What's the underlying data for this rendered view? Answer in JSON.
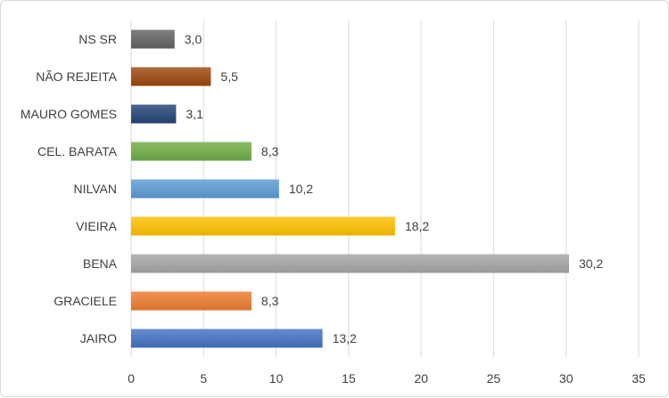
{
  "chart_data": {
    "type": "bar",
    "orientation": "horizontal",
    "categories": [
      "JAIRO",
      "GRACIELE",
      "BENA",
      "VIEIRA",
      "NILVAN",
      "CEL. BARATA",
      "MAURO GOMES",
      "NÃO REJEITA",
      "NS SR"
    ],
    "values": [
      13.2,
      8.3,
      30.2,
      18.2,
      10.2,
      8.3,
      3.1,
      5.5,
      3.0
    ],
    "value_labels": [
      "13,2",
      "8,3",
      "30,2",
      "18,2",
      "10,2",
      "8,3",
      "3,1",
      "5,5",
      "3,0"
    ],
    "bar_colors": [
      "#4472c4",
      "#ed7d31",
      "#a5a5a5",
      "#ffc000",
      "#5b9bd5",
      "#70ad47",
      "#264478",
      "#9e480e",
      "#636363"
    ],
    "xlim": [
      0,
      35
    ],
    "xticks": [
      0,
      5,
      10,
      15,
      20,
      25,
      30,
      35
    ],
    "grid": "vertical",
    "legend": "none",
    "title": "",
    "xlabel": "",
    "ylabel": ""
  }
}
